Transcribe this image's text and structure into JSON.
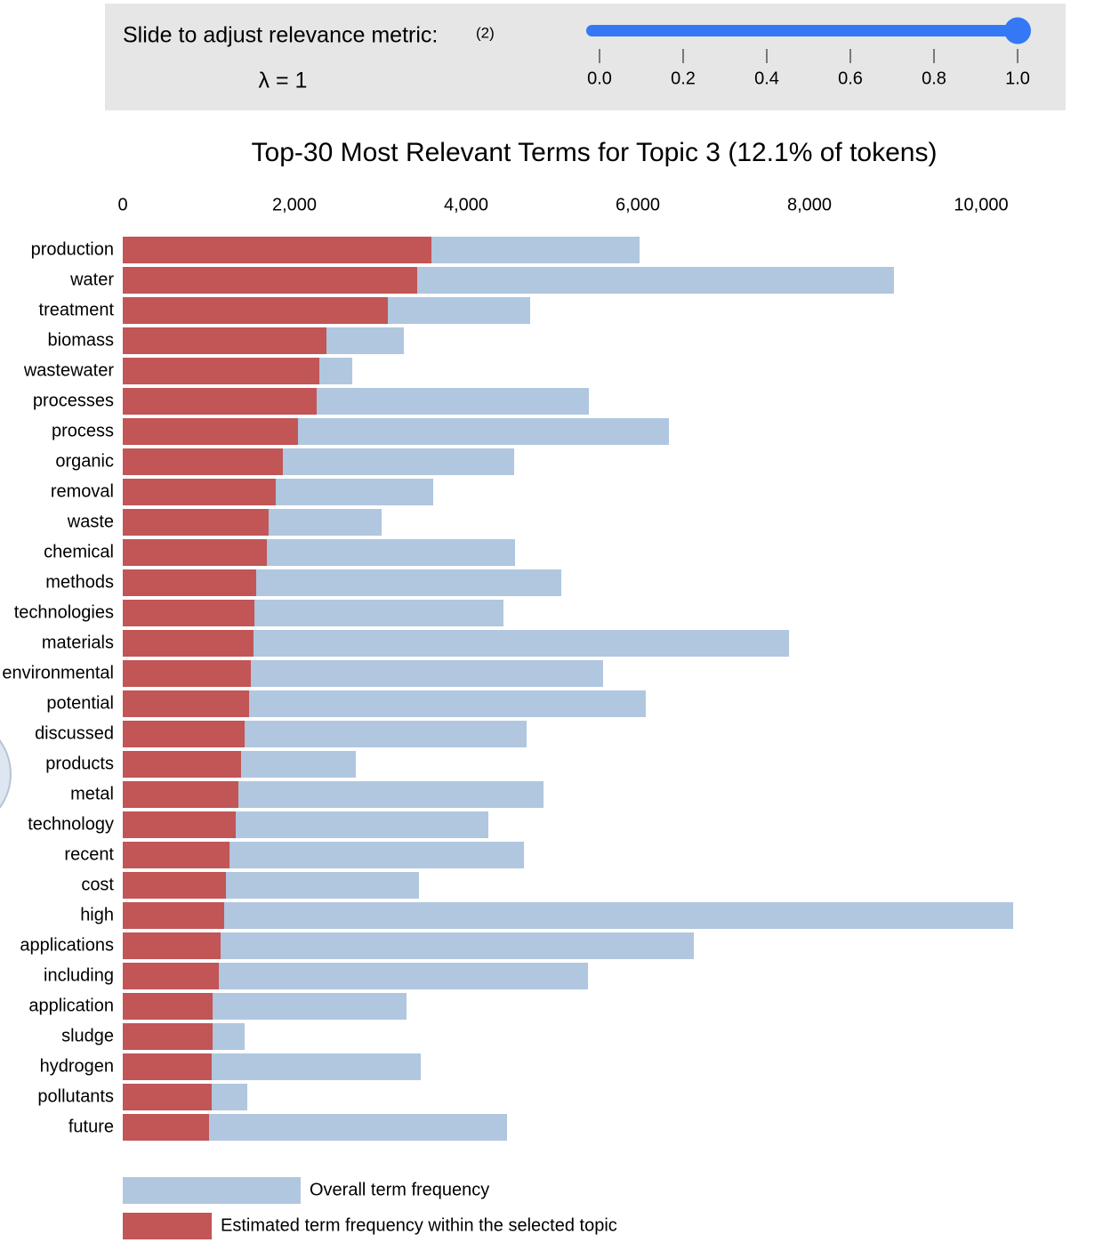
{
  "slider": {
    "label": "Slide to adjust relevance metric:",
    "note": "(2)",
    "lambda_text": "λ = 1",
    "value": 1,
    "lim": [
      0,
      1
    ],
    "ticks": [
      {
        "value": 0,
        "label": "0.0"
      },
      {
        "value": 0.2,
        "label": "0.2"
      },
      {
        "value": 0.4,
        "label": "0.4"
      },
      {
        "value": 0.6,
        "label": "0.6"
      },
      {
        "value": 0.8,
        "label": "0.8"
      },
      {
        "value": 1,
        "label": "1.0"
      }
    ]
  },
  "chart_data": {
    "type": "bar",
    "orientation": "horizontal",
    "overlay": true,
    "title": "Top-30 Most Relevant Terms for Topic 3 (12.1% of tokens)",
    "categories": [
      "production",
      "water",
      "treatment",
      "biomass",
      "wastewater",
      "processes",
      "process",
      "organic",
      "removal",
      "waste",
      "chemical",
      "methods",
      "technologies",
      "materials",
      "environmental",
      "potential",
      "discussed",
      "products",
      "metal",
      "technology",
      "recent",
      "cost",
      "high",
      "applications",
      "including",
      "application",
      "sludge",
      "hydrogen",
      "pollutants",
      "future"
    ],
    "series": [
      {
        "name": "Overall term frequency",
        "color": "#b0c7df",
        "values": [
          6021,
          8984,
          4746,
          3275,
          2674,
          5430,
          6363,
          4560,
          3617,
          3016,
          4570,
          5109,
          4435,
          7762,
          5596,
          6093,
          4705,
          2715,
          4902,
          4259,
          4674,
          3451,
          10373,
          6653,
          5420,
          3306,
          1420,
          3472,
          1451,
          4477
        ]
      },
      {
        "name": "Estimated term frequency within the selected topic",
        "color": "#c25556",
        "values": [
          3596,
          3430,
          3088,
          2373,
          2290,
          2259,
          2041,
          1865,
          1782,
          1699,
          1679,
          1554,
          1534,
          1523,
          1492,
          1472,
          1420,
          1378,
          1347,
          1316,
          1244,
          1202,
          1181,
          1140,
          1119,
          1047,
          1047,
          1036,
          1036,
          1005
        ]
      }
    ],
    "xlim": [
      0,
      10373
    ],
    "xticks": [
      0,
      {
        "value": 2000,
        "label": "2,000"
      },
      {
        "value": 4000,
        "label": "4,000"
      },
      {
        "value": 6000,
        "label": "6,000"
      },
      {
        "value": 8000,
        "label": "8,000"
      },
      {
        "value": 10000,
        "label": "10,000"
      }
    ],
    "grid": false
  }
}
